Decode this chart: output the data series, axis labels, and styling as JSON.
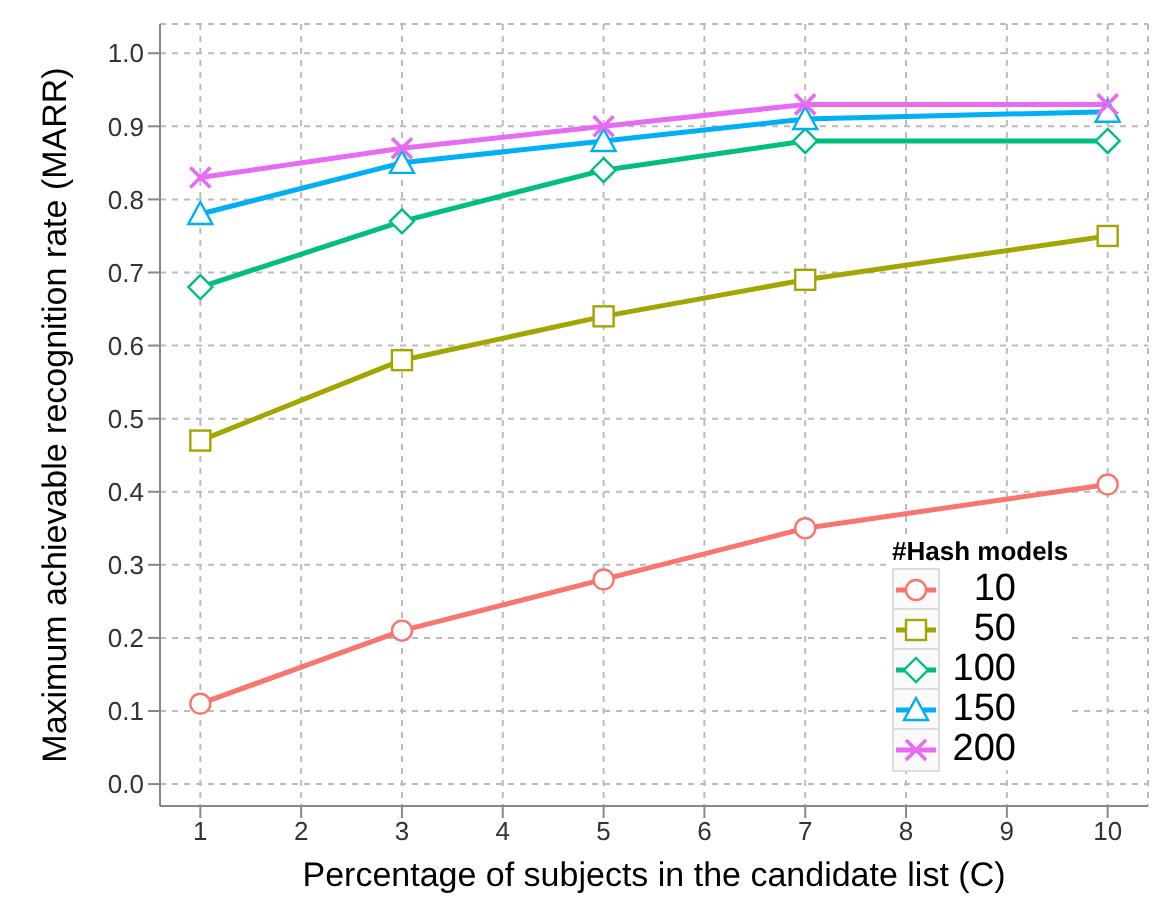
{
  "chart_data": {
    "type": "line",
    "xlabel": "Percentage of subjects in the candidate list (C)",
    "ylabel": "Maximum achievable recognition rate (MARR)",
    "legend_title": "#Hash models",
    "x": [
      1,
      3,
      5,
      7,
      10
    ],
    "series": [
      {
        "name": "10",
        "color": "#f8766d",
        "marker": "circle",
        "values": [
          0.11,
          0.21,
          0.28,
          0.35,
          0.41
        ]
      },
      {
        "name": "50",
        "color": "#a3a500",
        "marker": "square",
        "values": [
          0.47,
          0.58,
          0.64,
          0.69,
          0.75
        ]
      },
      {
        "name": "100",
        "color": "#00bf7d",
        "marker": "diamond",
        "values": [
          0.68,
          0.77,
          0.84,
          0.88,
          0.88
        ]
      },
      {
        "name": "150",
        "color": "#00b0f6",
        "marker": "triangle",
        "values": [
          0.78,
          0.85,
          0.88,
          0.91,
          0.92
        ]
      },
      {
        "name": "200",
        "color": "#e76bf3",
        "marker": "cross",
        "values": [
          0.83,
          0.87,
          0.9,
          0.93,
          0.93
        ]
      }
    ],
    "xlim": [
      0.6,
      10.4
    ],
    "xticks": [
      1,
      2,
      3,
      4,
      5,
      6,
      7,
      8,
      9,
      10
    ],
    "ylim": [
      -0.03,
      1.04
    ],
    "yticks": [
      {
        "value": 0,
        "label": "0.0"
      },
      0.1,
      0.2,
      0.3,
      0.4,
      0.5,
      0.6,
      0.7,
      0.8,
      0.9,
      {
        "value": 1,
        "label": "1.0"
      }
    ],
    "grid": true,
    "legend": "bottom right",
    "line_style": "solid"
  }
}
